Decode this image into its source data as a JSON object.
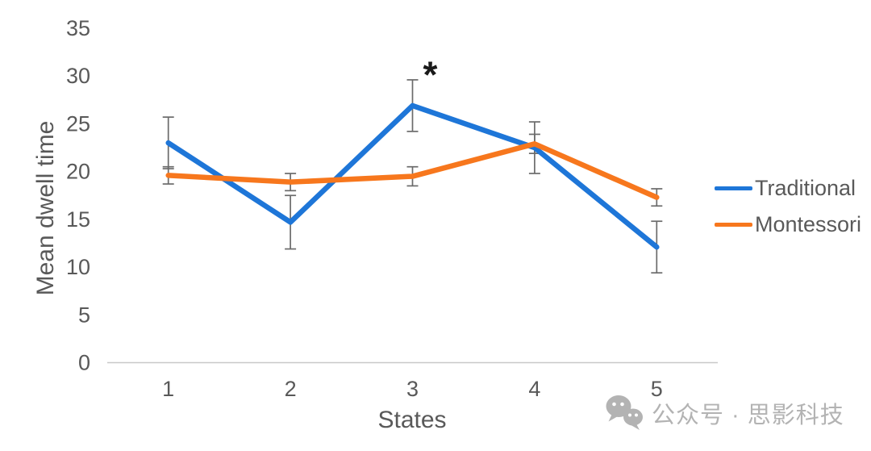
{
  "chart_data": {
    "type": "line",
    "xlabel": "States",
    "ylabel": "Mean dwell time",
    "x": [
      1,
      2,
      3,
      4,
      5
    ],
    "ylim": [
      0,
      35
    ],
    "yticks": [
      0,
      5,
      10,
      15,
      20,
      25,
      30,
      35
    ],
    "grid": false,
    "legend_position": "right",
    "series": [
      {
        "name": "Traditional",
        "color": "#1E76D8",
        "values": [
          23.0,
          14.7,
          26.9,
          22.5,
          12.1
        ],
        "error": [
          2.7,
          2.8,
          2.7,
          2.7,
          2.7
        ]
      },
      {
        "name": "Montessori",
        "color": "#F7771D",
        "values": [
          19.6,
          18.9,
          19.5,
          22.9,
          17.3
        ],
        "error": [
          0.9,
          0.9,
          1.0,
          1.0,
          0.9
        ]
      }
    ],
    "annotation": {
      "text": "*",
      "x": 3,
      "y": 30.8
    }
  },
  "watermark": {
    "icon": "wechat-icon",
    "text": "公众号 · 思影科技"
  },
  "colors": {
    "axis_line": "#C8C8C8",
    "tick_text": "#595959",
    "error_bar": "#6B6B6B",
    "annotation_text": "#1A1A1A",
    "watermark_gray": "#B3B3B3"
  }
}
